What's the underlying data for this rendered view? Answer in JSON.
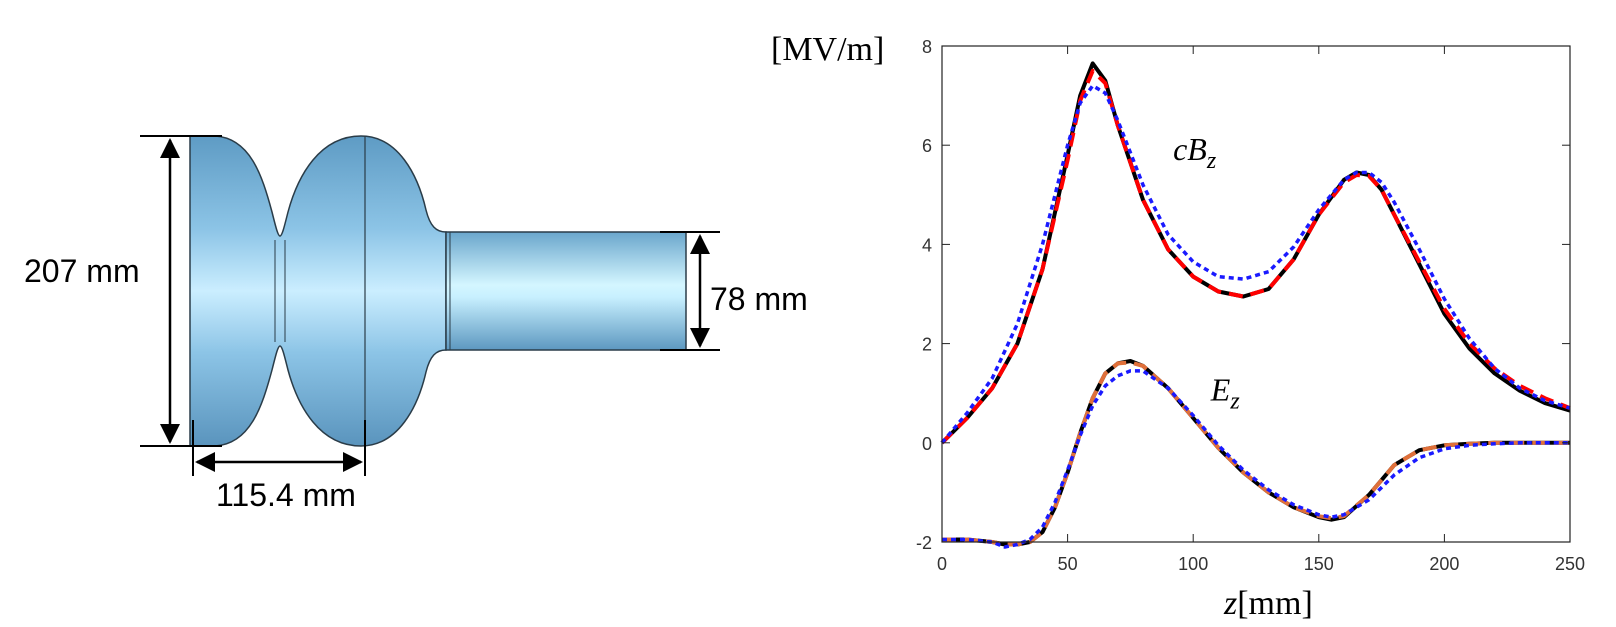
{
  "cavity": {
    "height_label": "207 mm",
    "length_label": "115.4 mm",
    "pipe_label": "78 mm"
  },
  "chart_data": {
    "type": "line",
    "ylabel": "[MV/m]",
    "xlabel_var": "z",
    "xlabel_unit": "[mm]",
    "xlim": [
      0,
      250
    ],
    "ylim": [
      -2,
      8
    ],
    "xticks": [
      "0",
      "50",
      "100",
      "150",
      "200",
      "250"
    ],
    "yticks": [
      "-2",
      "0",
      "2",
      "4",
      "6",
      "8"
    ],
    "grid": false,
    "annotations": [
      {
        "label": "cB",
        "sub": "z",
        "x": 92,
        "y": 5.7
      },
      {
        "label": "E",
        "sub": "z",
        "x": 107,
        "y": 0.85
      }
    ],
    "series": [
      {
        "color": "#000000",
        "dash": "",
        "x": [
          0,
          10,
          20,
          30,
          40,
          50,
          55,
          60,
          65,
          70,
          80,
          90,
          100,
          110,
          120,
          130,
          140,
          150,
          160,
          165,
          170,
          175,
          180,
          190,
          200,
          210,
          220,
          230,
          240,
          250
        ],
        "y": [
          0.0,
          0.5,
          1.1,
          2.0,
          3.5,
          5.8,
          7.0,
          7.65,
          7.3,
          6.4,
          4.9,
          3.9,
          3.35,
          3.05,
          2.95,
          3.1,
          3.7,
          4.6,
          5.3,
          5.45,
          5.4,
          5.1,
          4.6,
          3.6,
          2.6,
          1.9,
          1.4,
          1.05,
          0.8,
          0.65
        ]
      },
      {
        "color": "#ff0000",
        "dash": "14 8",
        "x": [
          0,
          10,
          20,
          30,
          40,
          50,
          55,
          60,
          65,
          70,
          80,
          90,
          100,
          110,
          120,
          130,
          140,
          150,
          160,
          165,
          170,
          175,
          180,
          190,
          200,
          210,
          220,
          230,
          240,
          250
        ],
        "y": [
          0.0,
          0.5,
          1.1,
          2.0,
          3.5,
          5.7,
          6.9,
          7.5,
          7.25,
          6.4,
          4.9,
          3.9,
          3.35,
          3.05,
          2.95,
          3.1,
          3.7,
          4.6,
          5.25,
          5.4,
          5.38,
          5.1,
          4.6,
          3.65,
          2.7,
          2.0,
          1.5,
          1.15,
          0.9,
          0.7
        ]
      },
      {
        "color": "#1a1aff",
        "dash": "5 4",
        "x": [
          0,
          10,
          20,
          30,
          40,
          50,
          55,
          60,
          65,
          70,
          80,
          90,
          100,
          110,
          120,
          130,
          140,
          150,
          160,
          165,
          170,
          175,
          180,
          190,
          200,
          210,
          220,
          230,
          240,
          250
        ],
        "y": [
          0.0,
          0.6,
          1.3,
          2.4,
          4.0,
          6.0,
          6.85,
          7.2,
          7.05,
          6.5,
          5.2,
          4.2,
          3.65,
          3.35,
          3.3,
          3.45,
          3.95,
          4.7,
          5.3,
          5.45,
          5.45,
          5.25,
          4.85,
          3.9,
          2.9,
          2.1,
          1.5,
          1.1,
          0.85,
          0.7
        ]
      },
      {
        "color": "#000000",
        "dash": "",
        "x": [
          0,
          10,
          20,
          25,
          30,
          35,
          40,
          45,
          50,
          55,
          60,
          65,
          70,
          75,
          80,
          90,
          100,
          110,
          120,
          130,
          140,
          150,
          155,
          160,
          170,
          180,
          190,
          200,
          210,
          220,
          230,
          240,
          250
        ],
        "y": [
          -1.95,
          -1.95,
          -2.0,
          -2.05,
          -2.05,
          -2.0,
          -1.8,
          -1.3,
          -0.6,
          0.2,
          0.9,
          1.4,
          1.6,
          1.65,
          1.55,
          1.1,
          0.5,
          -0.1,
          -0.6,
          -1.0,
          -1.3,
          -1.5,
          -1.55,
          -1.5,
          -1.05,
          -0.45,
          -0.15,
          -0.05,
          -0.02,
          0.0,
          0.0,
          0.0,
          0.0
        ]
      },
      {
        "color": "#e0703a",
        "dash": "14 8",
        "x": [
          0,
          10,
          20,
          25,
          30,
          35,
          40,
          45,
          50,
          55,
          60,
          65,
          70,
          75,
          80,
          90,
          100,
          110,
          120,
          130,
          140,
          150,
          155,
          160,
          170,
          180,
          190,
          200,
          210,
          220,
          230,
          240,
          250
        ],
        "y": [
          -1.95,
          -1.95,
          -2.0,
          -2.05,
          -2.05,
          -2.0,
          -1.8,
          -1.3,
          -0.6,
          0.2,
          0.9,
          1.4,
          1.6,
          1.62,
          1.55,
          1.1,
          0.5,
          -0.1,
          -0.6,
          -1.0,
          -1.3,
          -1.48,
          -1.52,
          -1.48,
          -1.05,
          -0.45,
          -0.15,
          -0.05,
          -0.02,
          0.0,
          0.0,
          0.0,
          0.0
        ]
      },
      {
        "color": "#1a1aff",
        "dash": "5 4",
        "x": [
          0,
          10,
          20,
          25,
          30,
          35,
          40,
          45,
          50,
          55,
          60,
          65,
          70,
          75,
          80,
          90,
          100,
          110,
          120,
          130,
          140,
          150,
          155,
          160,
          170,
          180,
          190,
          200,
          210,
          220,
          230,
          240,
          250
        ],
        "y": [
          -1.95,
          -1.95,
          -2.0,
          -2.1,
          -2.05,
          -1.95,
          -1.7,
          -1.2,
          -0.55,
          0.15,
          0.75,
          1.15,
          1.35,
          1.45,
          1.45,
          1.1,
          0.55,
          -0.05,
          -0.55,
          -0.95,
          -1.25,
          -1.45,
          -1.5,
          -1.45,
          -1.15,
          -0.65,
          -0.3,
          -0.12,
          -0.05,
          -0.02,
          0.0,
          0.0,
          0.0
        ]
      }
    ]
  }
}
